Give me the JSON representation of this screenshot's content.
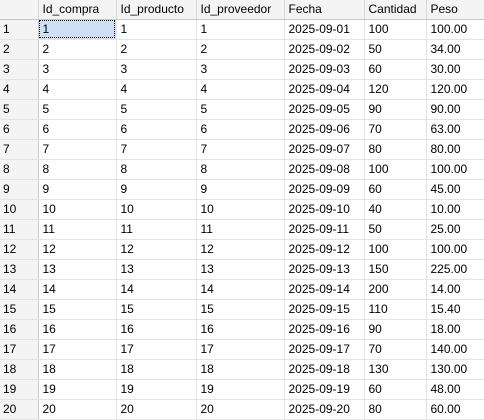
{
  "grid": {
    "columns": [
      "",
      "Id_compra",
      "Id_producto",
      "Id_proveedor",
      "Fecha",
      "Cantidad",
      "Peso"
    ],
    "rows": [
      [
        "1",
        "1",
        "1",
        "1",
        "2025-09-01",
        "100",
        "100.00"
      ],
      [
        "2",
        "2",
        "2",
        "2",
        "2025-09-02",
        "50",
        "34.00"
      ],
      [
        "3",
        "3",
        "3",
        "3",
        "2025-09-03",
        "60",
        "30.00"
      ],
      [
        "4",
        "4",
        "4",
        "4",
        "2025-09-04",
        "120",
        "120.00"
      ],
      [
        "5",
        "5",
        "5",
        "5",
        "2025-09-05",
        "90",
        "90.00"
      ],
      [
        "6",
        "6",
        "6",
        "6",
        "2025-09-06",
        "70",
        "63.00"
      ],
      [
        "7",
        "7",
        "7",
        "7",
        "2025-09-07",
        "80",
        "80.00"
      ],
      [
        "8",
        "8",
        "8",
        "8",
        "2025-09-08",
        "100",
        "100.00"
      ],
      [
        "9",
        "9",
        "9",
        "9",
        "2025-09-09",
        "60",
        "45.00"
      ],
      [
        "10",
        "10",
        "10",
        "10",
        "2025-09-10",
        "40",
        "10.00"
      ],
      [
        "11",
        "11",
        "11",
        "11",
        "2025-09-11",
        "50",
        "25.00"
      ],
      [
        "12",
        "12",
        "12",
        "12",
        "2025-09-12",
        "100",
        "100.00"
      ],
      [
        "13",
        "13",
        "13",
        "13",
        "2025-09-13",
        "150",
        "225.00"
      ],
      [
        "14",
        "14",
        "14",
        "14",
        "2025-09-14",
        "200",
        "14.00"
      ],
      [
        "15",
        "15",
        "15",
        "15",
        "2025-09-15",
        "110",
        "15.40"
      ],
      [
        "16",
        "16",
        "16",
        "16",
        "2025-09-16",
        "90",
        "18.00"
      ],
      [
        "17",
        "17",
        "17",
        "17",
        "2025-09-17",
        "70",
        "140.00"
      ],
      [
        "18",
        "18",
        "18",
        "18",
        "2025-09-18",
        "130",
        "130.00"
      ],
      [
        "19",
        "19",
        "19",
        "19",
        "2025-09-19",
        "60",
        "48.00"
      ],
      [
        "20",
        "20",
        "20",
        "20",
        "2025-09-20",
        "80",
        "60.00"
      ]
    ]
  }
}
